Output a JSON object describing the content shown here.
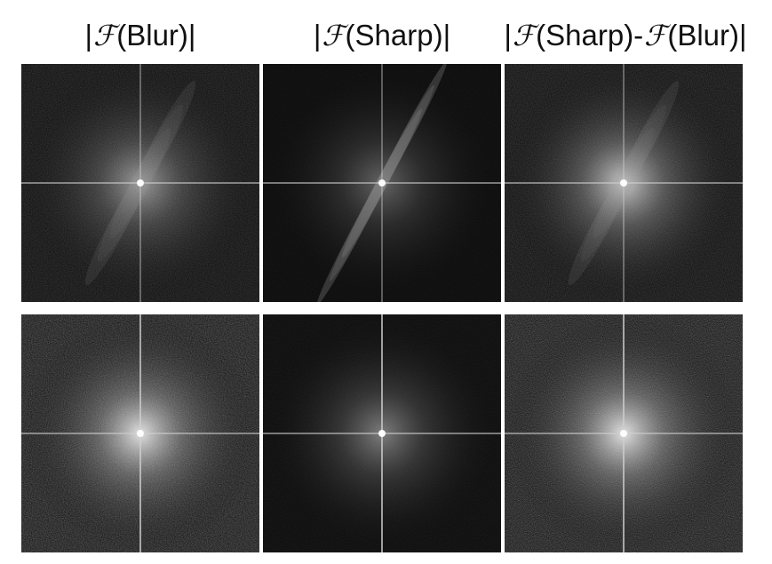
{
  "headers": {
    "col1": {
      "pre": "|",
      "sym": "ℱ",
      "post": "(Blur)|"
    },
    "col2": {
      "pre": "|",
      "sym": "ℱ",
      "post": "(Sharp)|"
    },
    "col3": {
      "pre": "|",
      "sym": "ℱ",
      "mid": "(Sharp)-",
      "sym2": "ℱ",
      "post": "(Blur)|"
    }
  },
  "tiles": [
    {
      "row": 1,
      "col": 1,
      "subject": "blur-spectrum",
      "glow": 0.55,
      "noise": 0.5,
      "streaks": "diagonal-weak"
    },
    {
      "row": 1,
      "col": 2,
      "subject": "sharp-spectrum",
      "glow": 0.35,
      "noise": 0.15,
      "streaks": "diagonal-strong"
    },
    {
      "row": 1,
      "col": 3,
      "subject": "difference-spectrum",
      "glow": 0.75,
      "noise": 0.55,
      "streaks": "diagonal-weak"
    },
    {
      "row": 2,
      "col": 1,
      "subject": "blur-spectrum",
      "glow": 0.85,
      "noise": 0.9,
      "streaks": "none"
    },
    {
      "row": 2,
      "col": 2,
      "subject": "sharp-spectrum",
      "glow": 0.45,
      "noise": 0.2,
      "streaks": "none"
    },
    {
      "row": 2,
      "col": 3,
      "subject": "difference-spectrum",
      "glow": 0.85,
      "noise": 0.9,
      "streaks": "none"
    }
  ]
}
